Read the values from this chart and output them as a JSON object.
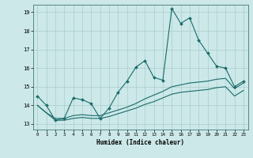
{
  "title": "",
  "xlabel": "Humidex (Indice chaleur)",
  "bg_color": "#cce8e8",
  "line_color": "#1a6b6b",
  "grid_color": "#aacccc",
  "xlim": [
    -0.5,
    23.5
  ],
  "ylim": [
    12.7,
    19.4
  ],
  "yticks": [
    13,
    14,
    15,
    16,
    17,
    18,
    19
  ],
  "xticks": [
    0,
    1,
    2,
    3,
    4,
    5,
    6,
    7,
    8,
    9,
    10,
    11,
    12,
    13,
    14,
    15,
    16,
    17,
    18,
    19,
    20,
    21,
    22,
    23
  ],
  "line1_x": [
    0,
    1,
    2,
    3,
    4,
    5,
    6,
    7,
    8,
    9,
    10,
    11,
    12,
    13,
    14,
    15,
    16,
    17,
    18,
    19,
    20,
    21,
    22,
    23
  ],
  "line1_y": [
    14.5,
    14.0,
    13.2,
    13.3,
    14.4,
    14.3,
    14.1,
    13.3,
    13.85,
    14.7,
    15.3,
    16.05,
    16.4,
    15.5,
    15.35,
    19.2,
    18.4,
    18.7,
    17.5,
    16.8,
    16.1,
    16.0,
    15.0,
    15.3
  ],
  "line2_x": [
    0,
    1,
    2,
    3,
    4,
    5,
    6,
    7,
    8,
    9,
    10,
    11,
    12,
    13,
    14,
    15,
    16,
    17,
    18,
    19,
    20,
    21,
    22,
    23
  ],
  "line2_y": [
    14.0,
    13.6,
    13.3,
    13.3,
    13.45,
    13.5,
    13.45,
    13.45,
    13.6,
    13.75,
    13.9,
    14.1,
    14.35,
    14.55,
    14.75,
    15.0,
    15.1,
    15.2,
    15.25,
    15.3,
    15.4,
    15.45,
    14.9,
    15.2
  ],
  "line3_x": [
    0,
    1,
    2,
    3,
    4,
    5,
    6,
    7,
    8,
    9,
    10,
    11,
    12,
    13,
    14,
    15,
    16,
    17,
    18,
    19,
    20,
    21,
    22,
    23
  ],
  "line3_y": [
    14.0,
    13.6,
    13.2,
    13.2,
    13.3,
    13.35,
    13.3,
    13.3,
    13.4,
    13.55,
    13.7,
    13.85,
    14.05,
    14.2,
    14.4,
    14.6,
    14.7,
    14.75,
    14.8,
    14.85,
    14.95,
    15.0,
    14.5,
    14.8
  ]
}
